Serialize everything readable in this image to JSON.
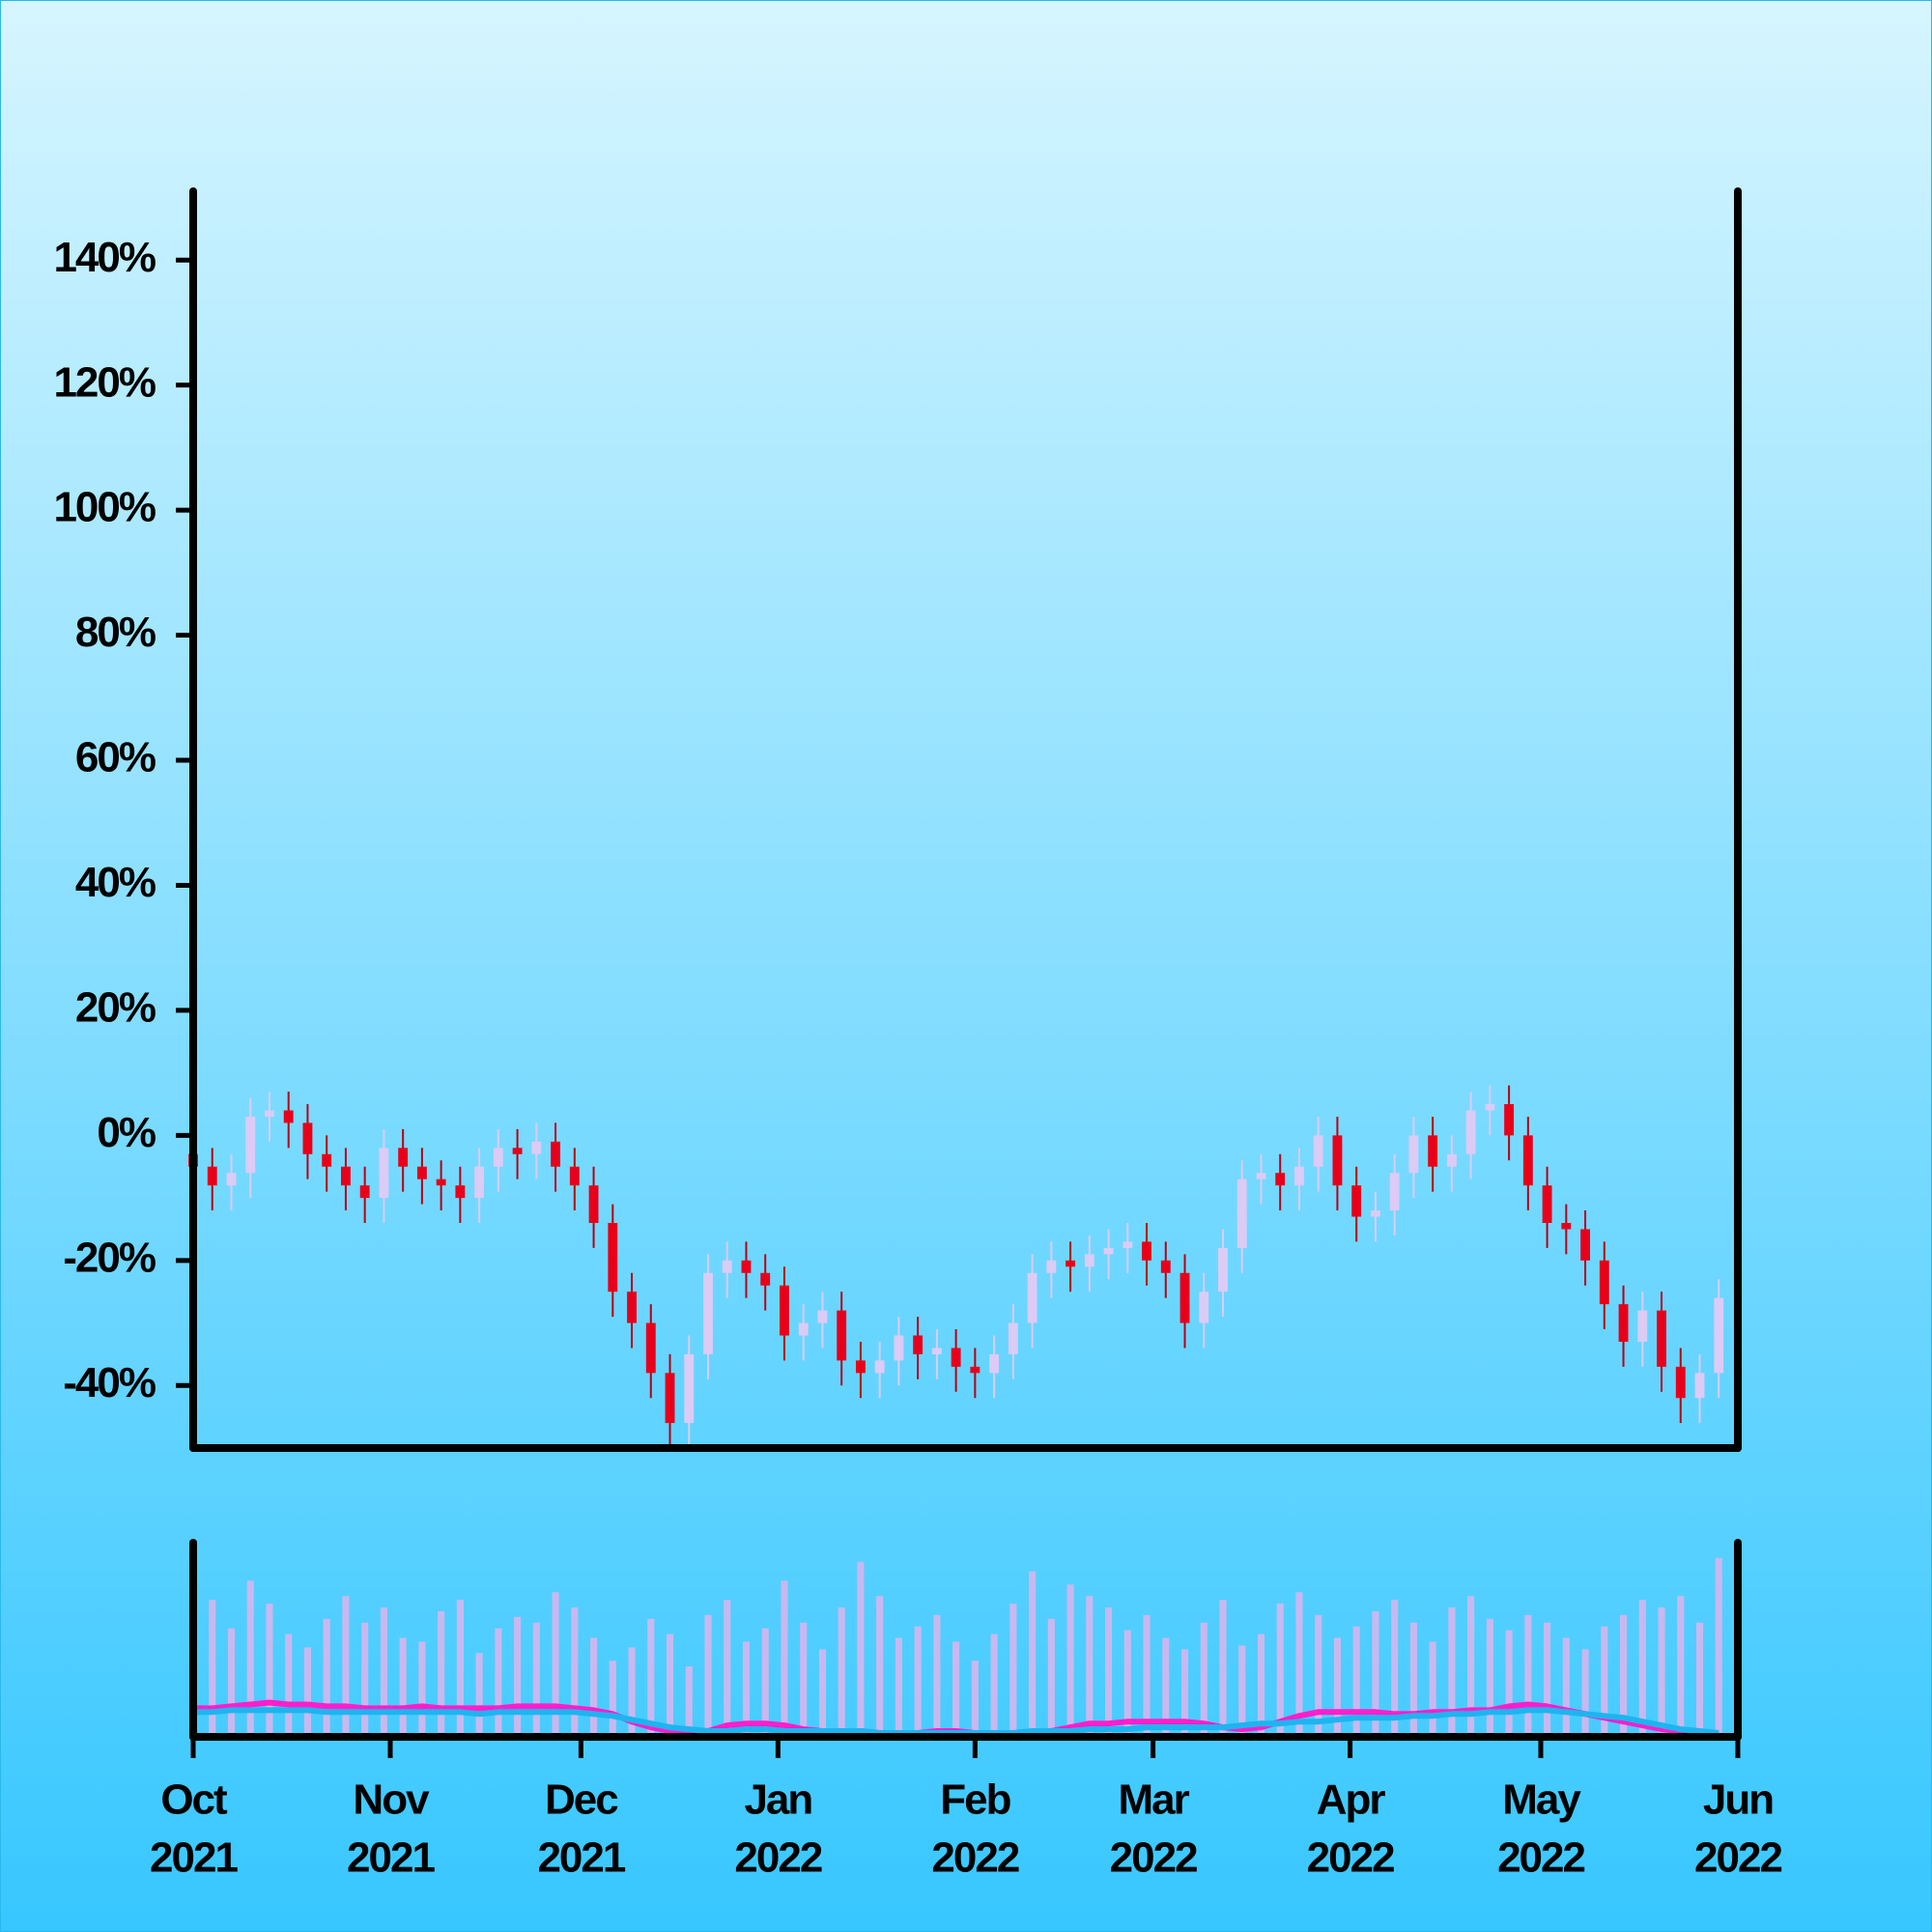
{
  "chart_data": {
    "type": "candlestick",
    "x": [
      0,
      3,
      6,
      9,
      12,
      15,
      18,
      21,
      24,
      27,
      30,
      33,
      36,
      39,
      42,
      45,
      48,
      51,
      54,
      57,
      60,
      63,
      66,
      69,
      72,
      75,
      78,
      81,
      84,
      87,
      90,
      93,
      96,
      99,
      102,
      105,
      108,
      111,
      114,
      117,
      120,
      123,
      126,
      129,
      132,
      135,
      138,
      141,
      144,
      147,
      150,
      153,
      156,
      159,
      162,
      165,
      168,
      171,
      174,
      177,
      180,
      183,
      186,
      189,
      192,
      195,
      198,
      201,
      204,
      207,
      210,
      213,
      216,
      219,
      222,
      225,
      228,
      231,
      234,
      237,
      240
    ],
    "xlim": [
      0,
      243
    ],
    "xticks": [
      {
        "value": 0,
        "label": [
          "Oct",
          "2021"
        ]
      },
      {
        "value": 31,
        "label": [
          "Nov",
          "2021"
        ]
      },
      {
        "value": 61,
        "label": [
          "Dec",
          "2021"
        ]
      },
      {
        "value": 92,
        "label": [
          "Jan",
          "2022"
        ]
      },
      {
        "value": 123,
        "label": [
          "Feb",
          "2022"
        ]
      },
      {
        "value": 151,
        "label": [
          "Mar",
          "2022"
        ]
      },
      {
        "value": 182,
        "label": [
          "Apr",
          "2022"
        ]
      },
      {
        "value": 212,
        "label": [
          "May",
          "2022"
        ]
      },
      {
        "value": 243,
        "label": [
          "Jun",
          "2022"
        ]
      }
    ],
    "ylim": [
      -50,
      151
    ],
    "yticks": [
      {
        "value": -40,
        "label": "-40%"
      },
      {
        "value": -20,
        "label": "-20%"
      },
      {
        "value": 0,
        "label": "0%"
      },
      {
        "value": 20,
        "label": "20%"
      },
      {
        "value": 40,
        "label": "40%"
      },
      {
        "value": 60,
        "label": "60%"
      },
      {
        "value": 80,
        "label": "80%"
      },
      {
        "value": 100,
        "label": "100%"
      },
      {
        "value": 120,
        "label": "120%"
      },
      {
        "value": 140,
        "label": "140%"
      }
    ],
    "up_color": "#dccbf5",
    "down_color": "#e8001a",
    "ohlc": [
      [
        -3,
        0,
        -9,
        -5
      ],
      [
        -5,
        -2,
        -12,
        -8
      ],
      [
        -8,
        -3,
        -12,
        -6
      ],
      [
        -6,
        6,
        -10,
        3
      ],
      [
        3,
        7,
        -1,
        4
      ],
      [
        4,
        7,
        -2,
        2
      ],
      [
        2,
        5,
        -7,
        -3
      ],
      [
        -3,
        0,
        -9,
        -5
      ],
      [
        -5,
        -2,
        -12,
        -8
      ],
      [
        -8,
        -5,
        -14,
        -10
      ],
      [
        -10,
        1,
        -14,
        -2
      ],
      [
        -2,
        1,
        -9,
        -5
      ],
      [
        -5,
        -2,
        -11,
        -7
      ],
      [
        -7,
        -4,
        -12,
        -8
      ],
      [
        -8,
        -5,
        -14,
        -10
      ],
      [
        -10,
        -2,
        -14,
        -5
      ],
      [
        -5,
        1,
        -9,
        -2
      ],
      [
        -2,
        1,
        -7,
        -3
      ],
      [
        -3,
        2,
        -7,
        -1
      ],
      [
        -1,
        2,
        -9,
        -5
      ],
      [
        -5,
        -2,
        -12,
        -8
      ],
      [
        -8,
        -5,
        -18,
        -14
      ],
      [
        -14,
        -11,
        -29,
        -25
      ],
      [
        -25,
        -22,
        -34,
        -30
      ],
      [
        -30,
        -27,
        -42,
        -38
      ],
      [
        -38,
        -35,
        -50,
        -46
      ],
      [
        -46,
        -32,
        -50,
        -35
      ],
      [
        -35,
        -19,
        -39,
        -22
      ],
      [
        -22,
        -17,
        -26,
        -20
      ],
      [
        -20,
        -17,
        -26,
        -22
      ],
      [
        -22,
        -19,
        -28,
        -24
      ],
      [
        -24,
        -21,
        -36,
        -32
      ],
      [
        -32,
        -27,
        -36,
        -30
      ],
      [
        -30,
        -25,
        -34,
        -28
      ],
      [
        -28,
        -25,
        -40,
        -36
      ],
      [
        -36,
        -33,
        -42,
        -38
      ],
      [
        -38,
        -33,
        -42,
        -36
      ],
      [
        -36,
        -29,
        -40,
        -32
      ],
      [
        -32,
        -29,
        -39,
        -35
      ],
      [
        -35,
        -31,
        -39,
        -34
      ],
      [
        -34,
        -31,
        -41,
        -37
      ],
      [
        -37,
        -34,
        -42,
        -38
      ],
      [
        -38,
        -32,
        -42,
        -35
      ],
      [
        -35,
        -27,
        -39,
        -30
      ],
      [
        -30,
        -19,
        -34,
        -22
      ],
      [
        -22,
        -17,
        -26,
        -20
      ],
      [
        -20,
        -17,
        -25,
        -21
      ],
      [
        -21,
        -16,
        -25,
        -19
      ],
      [
        -19,
        -15,
        -23,
        -18
      ],
      [
        -18,
        -14,
        -22,
        -17
      ],
      [
        -17,
        -14,
        -24,
        -20
      ],
      [
        -20,
        -17,
        -26,
        -22
      ],
      [
        -22,
        -19,
        -34,
        -30
      ],
      [
        -30,
        -22,
        -34,
        -25
      ],
      [
        -25,
        -15,
        -29,
        -18
      ],
      [
        -18,
        -4,
        -22,
        -7
      ],
      [
        -7,
        -3,
        -11,
        -6
      ],
      [
        -6,
        -3,
        -12,
        -8
      ],
      [
        -8,
        -2,
        -12,
        -5
      ],
      [
        -5,
        3,
        -9,
        0
      ],
      [
        0,
        3,
        -12,
        -8
      ],
      [
        -8,
        -5,
        -17,
        -13
      ],
      [
        -13,
        -9,
        -17,
        -12
      ],
      [
        -12,
        -3,
        -16,
        -6
      ],
      [
        -6,
        3,
        -10,
        0
      ],
      [
        0,
        3,
        -9,
        -5
      ],
      [
        -5,
        0,
        -9,
        -3
      ],
      [
        -3,
        7,
        -7,
        4
      ],
      [
        4,
        8,
        0,
        5
      ],
      [
        5,
        8,
        -4,
        0
      ],
      [
        0,
        3,
        -12,
        -8
      ],
      [
        -8,
        -5,
        -18,
        -14
      ],
      [
        -14,
        -11,
        -19,
        -15
      ],
      [
        -15,
        -12,
        -24,
        -20
      ],
      [
        -20,
        -17,
        -31,
        -27
      ],
      [
        -27,
        -24,
        -37,
        -33
      ],
      [
        -33,
        -25,
        -37,
        -28
      ],
      [
        -28,
        -25,
        -41,
        -37
      ],
      [
        -37,
        -34,
        -46,
        -42
      ],
      [
        -42,
        -35,
        -46,
        -38
      ],
      [
        -38,
        -23,
        -42,
        -26
      ]
    ],
    "volume_lim": [
      0,
      100
    ],
    "volume_color": "#c9b8ef",
    "volume": [
      62,
      70,
      55,
      80,
      68,
      52,
      45,
      60,
      72,
      58,
      66,
      50,
      48,
      64,
      70,
      42,
      55,
      61,
      58,
      74,
      66,
      50,
      38,
      45,
      60,
      52,
      35,
      62,
      70,
      48,
      55,
      80,
      58,
      44,
      66,
      90,
      72,
      50,
      56,
      62,
      48,
      38,
      52,
      68,
      85,
      60,
      78,
      72,
      66,
      54,
      62,
      50,
      44,
      58,
      70,
      46,
      52,
      68,
      74,
      62,
      50,
      56,
      64,
      70,
      58,
      48,
      66,
      72,
      60,
      54,
      62,
      58,
      50,
      44,
      56,
      62,
      70,
      66,
      72,
      58,
      92
    ],
    "averages": [
      {
        "color": "#ff1ecb",
        "values": [
          13,
          13,
          14,
          15,
          16,
          15,
          15,
          14,
          14,
          13,
          13,
          13,
          14,
          13,
          13,
          13,
          13,
          14,
          14,
          14,
          13,
          12,
          10,
          6,
          3,
          1,
          0,
          1,
          4,
          5,
          5,
          4,
          2,
          1,
          1,
          1,
          0,
          0,
          0,
          1,
          1,
          0,
          0,
          0,
          0,
          1,
          3,
          5,
          5,
          6,
          6,
          6,
          6,
          5,
          3,
          2,
          3,
          6,
          9,
          11,
          11,
          11,
          11,
          10,
          10,
          11,
          11,
          12,
          12,
          14,
          15,
          14,
          12,
          10,
          8,
          6,
          4,
          2,
          1,
          0,
          0
        ]
      },
      {
        "color": "#1eb4f0",
        "values": [
          11,
          11,
          12,
          12,
          12,
          12,
          12,
          11,
          11,
          11,
          11,
          11,
          11,
          11,
          11,
          10,
          11,
          11,
          11,
          11,
          11,
          10,
          9,
          7,
          5,
          3,
          2,
          1,
          1,
          2,
          2,
          1,
          1,
          1,
          1,
          1,
          0,
          0,
          0,
          0,
          0,
          0,
          0,
          0,
          1,
          1,
          1,
          2,
          2,
          2,
          3,
          3,
          3,
          3,
          3,
          4,
          5,
          5,
          6,
          6,
          7,
          8,
          8,
          8,
          9,
          9,
          10,
          10,
          11,
          11,
          12,
          12,
          11,
          10,
          9,
          8,
          6,
          4,
          2,
          1,
          0
        ]
      }
    ]
  }
}
